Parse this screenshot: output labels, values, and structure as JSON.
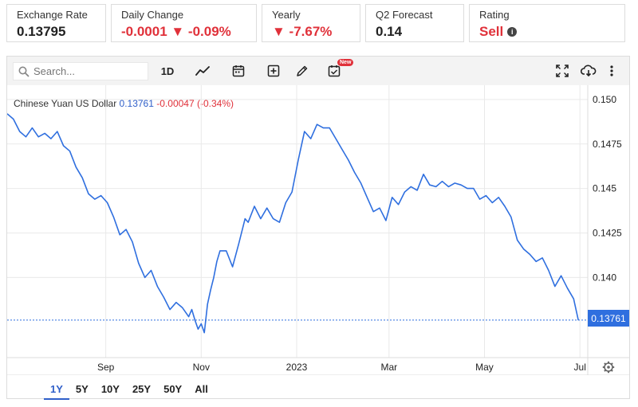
{
  "stats": [
    {
      "label": "Exchange Rate",
      "value": "0.13795",
      "tone": "dark",
      "width": 125
    },
    {
      "label": "Daily Change",
      "value": "-0.0001 ▼ -0.09%",
      "tone": "neg",
      "width": 183
    },
    {
      "label": "Yearly",
      "value": "▼ -7.67%",
      "tone": "neg",
      "width": 124
    },
    {
      "label": "Q2 Forecast",
      "value": "0.14",
      "tone": "dark",
      "width": 124
    },
    {
      "label": "Rating",
      "value": "Sell",
      "tone": "neg",
      "width": 196,
      "info": true
    }
  ],
  "toolbar": {
    "search_placeholder": "Search...",
    "interval": "1D",
    "new_badge": "New"
  },
  "series_header": {
    "name": "Chinese Yuan US Dollar",
    "last": "0.13761",
    "change": "-0.00047 (-0.34%)"
  },
  "price_tag": "0.13761",
  "ranges": [
    "1Y",
    "5Y",
    "10Y",
    "25Y",
    "50Y",
    "All"
  ],
  "active_range": "1Y",
  "colors": {
    "line": "#2f6fdf",
    "negative": "#e0313a",
    "grid": "#e9e9e9"
  },
  "chart_data": {
    "type": "line",
    "title": "Chinese Yuan US Dollar",
    "xlabel": "",
    "ylabel": "",
    "ylim": [
      0.1355,
      0.1508
    ],
    "yticks": [
      0.14,
      0.1425,
      0.145,
      0.1475,
      0.15
    ],
    "ytick_labels": [
      "0.140",
      "0.1425",
      "0.145",
      "0.1475",
      "0.150"
    ],
    "xticks": [
      {
        "label": "Sep",
        "date": "2022-09-01"
      },
      {
        "label": "Nov",
        "date": "2022-11-01"
      },
      {
        "label": "2023",
        "date": "2023-01-01"
      },
      {
        "label": "Mar",
        "date": "2023-03-01"
      },
      {
        "label": "May",
        "date": "2023-05-01"
      },
      {
        "label": "Jul",
        "date": "2023-07-01"
      }
    ],
    "xlim": [
      "2022-06-30",
      "2023-07-06"
    ],
    "last_value": 0.13761,
    "grid": true,
    "legend": "none",
    "series": [
      {
        "x": [
          "2022-06-30",
          "2022-07-04",
          "2022-07-08",
          "2022-07-12",
          "2022-07-16",
          "2022-07-20",
          "2022-07-24",
          "2022-07-28",
          "2022-08-01",
          "2022-08-05",
          "2022-08-09",
          "2022-08-13",
          "2022-08-17",
          "2022-08-21",
          "2022-08-25",
          "2022-08-29",
          "2022-09-02",
          "2022-09-06",
          "2022-09-10",
          "2022-09-14",
          "2022-09-18",
          "2022-09-22",
          "2022-09-26",
          "2022-09-30",
          "2022-10-04",
          "2022-10-08",
          "2022-10-12",
          "2022-10-16",
          "2022-10-20",
          "2022-10-24",
          "2022-10-26",
          "2022-10-28",
          "2022-10-30",
          "2022-11-01",
          "2022-11-03",
          "2022-11-05",
          "2022-11-07",
          "2022-11-09",
          "2022-11-11",
          "2022-11-13",
          "2022-11-17",
          "2022-11-21",
          "2022-11-25",
          "2022-11-29",
          "2022-12-01",
          "2022-12-05",
          "2022-12-09",
          "2022-12-13",
          "2022-12-17",
          "2022-12-21",
          "2022-12-25",
          "2022-12-29",
          "2023-01-02",
          "2023-01-06",
          "2023-01-10",
          "2023-01-14",
          "2023-01-18",
          "2023-01-22",
          "2023-01-26",
          "2023-01-30",
          "2023-02-03",
          "2023-02-07",
          "2023-02-11",
          "2023-02-15",
          "2023-02-19",
          "2023-02-23",
          "2023-02-27",
          "2023-03-03",
          "2023-03-07",
          "2023-03-11",
          "2023-03-15",
          "2023-03-19",
          "2023-03-23",
          "2023-03-27",
          "2023-03-31",
          "2023-04-04",
          "2023-04-08",
          "2023-04-12",
          "2023-04-16",
          "2023-04-20",
          "2023-04-24",
          "2023-04-28",
          "2023-05-02",
          "2023-05-06",
          "2023-05-10",
          "2023-05-14",
          "2023-05-18",
          "2023-05-22",
          "2023-05-26",
          "2023-05-30",
          "2023-06-03",
          "2023-06-07",
          "2023-06-11",
          "2023-06-15",
          "2023-06-19",
          "2023-06-23",
          "2023-06-27",
          "2023-06-30"
        ],
        "values": [
          0.1492,
          0.1489,
          0.1482,
          0.1479,
          0.1484,
          0.1479,
          0.1481,
          0.1478,
          0.1482,
          0.1474,
          0.1471,
          0.1462,
          0.1456,
          0.1447,
          0.1444,
          0.1446,
          0.1442,
          0.1434,
          0.1424,
          0.1427,
          0.142,
          0.1408,
          0.14,
          0.1404,
          0.1395,
          0.1389,
          0.1382,
          0.1386,
          0.1383,
          0.1378,
          0.1382,
          0.1376,
          0.1371,
          0.1374,
          0.1369,
          0.1385,
          0.1393,
          0.14,
          0.1409,
          0.1415,
          0.1415,
          0.1406,
          0.1419,
          0.1433,
          0.1431,
          0.144,
          0.1433,
          0.1439,
          0.1433,
          0.1431,
          0.1442,
          0.1448,
          0.1466,
          0.1482,
          0.1478,
          0.1486,
          0.1484,
          0.1484,
          0.1478,
          0.1472,
          0.1466,
          0.1459,
          0.1453,
          0.1445,
          0.1437,
          0.1439,
          0.1432,
          0.1445,
          0.1441,
          0.1448,
          0.1451,
          0.1449,
          0.1458,
          0.1452,
          0.1451,
          0.1454,
          0.1451,
          0.1453,
          0.1452,
          0.145,
          0.145,
          0.1444,
          0.1446,
          0.1442,
          0.1445,
          0.144,
          0.1434,
          0.1421,
          0.1416,
          0.1413,
          0.1409,
          0.1411,
          0.1404,
          0.1395,
          0.1401,
          0.1394,
          0.1388,
          0.1376
        ]
      }
    ]
  }
}
